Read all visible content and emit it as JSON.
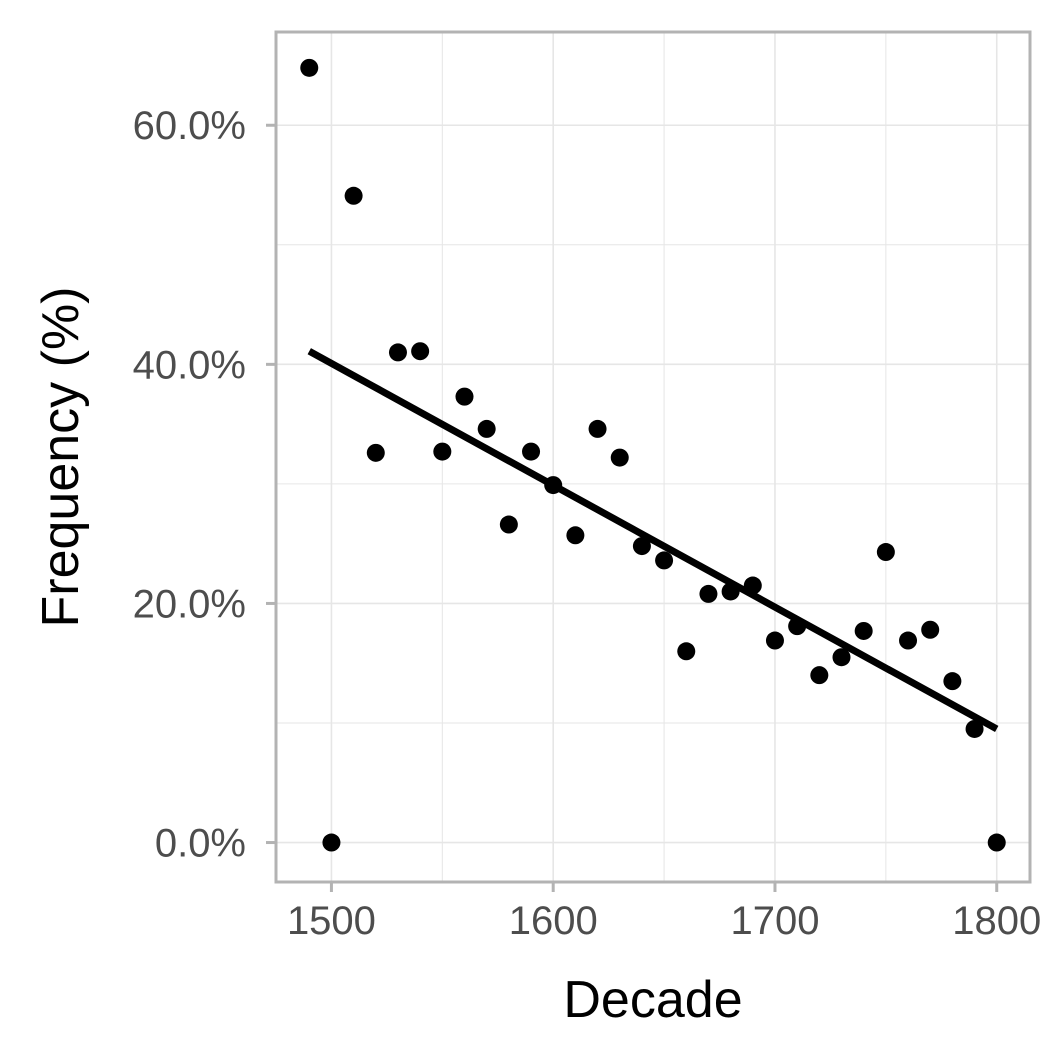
{
  "chart_data": {
    "type": "scatter",
    "xlabel": "Decade",
    "ylabel": "Frequency (%)",
    "xlim": [
      1475,
      1815
    ],
    "ylim": [
      -3.3,
      67.8
    ],
    "x_ticks": [
      1500,
      1600,
      1700,
      1800
    ],
    "x_tick_labels": [
      "1500",
      "1600",
      "1700",
      "1800"
    ],
    "y_ticks": [
      0,
      20,
      40,
      60
    ],
    "y_tick_labels": [
      "0.0%",
      "20.0%",
      "40.0%",
      "60.0%"
    ],
    "grid": true,
    "points": {
      "x": [
        1490,
        1500,
        1510,
        1520,
        1530,
        1540,
        1550,
        1560,
        1570,
        1580,
        1590,
        1600,
        1610,
        1620,
        1630,
        1640,
        1650,
        1660,
        1670,
        1680,
        1690,
        1700,
        1710,
        1720,
        1730,
        1740,
        1750,
        1760,
        1770,
        1780,
        1790,
        1800
      ],
      "y": [
        64.8,
        0.0,
        54.1,
        32.6,
        41.0,
        41.1,
        32.7,
        37.3,
        34.6,
        26.6,
        32.7,
        29.9,
        25.7,
        34.6,
        32.2,
        24.8,
        23.6,
        16.0,
        20.8,
        21.0,
        21.5,
        16.9,
        18.1,
        14.0,
        15.5,
        17.7,
        24.3,
        16.9,
        17.8,
        13.5,
        9.5,
        0.0
      ]
    },
    "trend_line": {
      "x": [
        1490,
        1800
      ],
      "y": [
        41.1,
        9.5
      ]
    },
    "colors": {
      "points": "#000000",
      "trend_line": "#000000",
      "panel_border": "#b3b3b3",
      "grid": "#e6e6e6",
      "tick_text": "#4d4d4d",
      "axis_title": "#000000"
    }
  }
}
